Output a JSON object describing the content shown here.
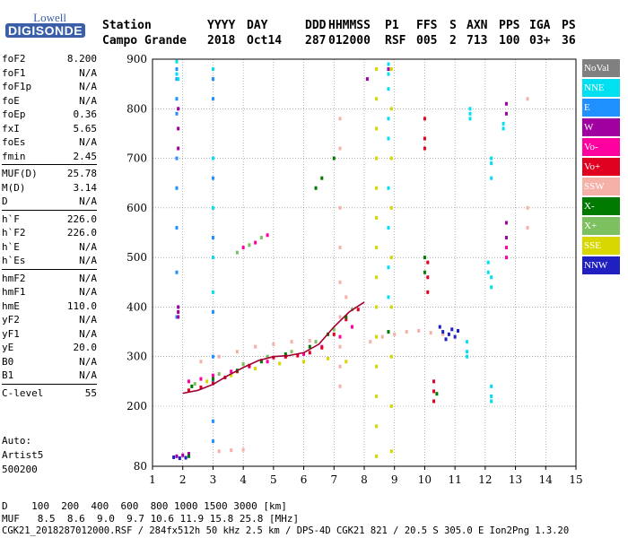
{
  "logo": {
    "top": "Lowell",
    "main": "DIGISONDE"
  },
  "header": {
    "labels": [
      "Station",
      "YYYY",
      "DAY",
      "DDD",
      "HHMMSS",
      "P1",
      "FFS",
      "S",
      "AXN",
      "PPS",
      "IGA",
      "PS"
    ],
    "values": [
      "Campo Grande",
      "2018",
      "Oct14",
      "287",
      "012000",
      "RSF",
      "005",
      "2",
      "713",
      "100",
      "03+",
      "36"
    ]
  },
  "parameter_groups": [
    [
      {
        "key": "foF2",
        "value": "8.200"
      },
      {
        "key": "foF1",
        "value": "N/A"
      },
      {
        "key": "foF1p",
        "value": "N/A"
      },
      {
        "key": "foE",
        "value": "N/A"
      },
      {
        "key": "foEp",
        "value": "0.36"
      },
      {
        "key": "fxI",
        "value": "5.65"
      },
      {
        "key": "foEs",
        "value": "N/A"
      },
      {
        "key": "fmin",
        "value": "2.45"
      }
    ],
    [
      {
        "key": "MUF(D)",
        "value": "25.78"
      },
      {
        "key": "M(D)",
        "value": "3.14"
      },
      {
        "key": "D",
        "value": "N/A"
      }
    ],
    [
      {
        "key": "h`F",
        "value": "226.0"
      },
      {
        "key": "h`F2",
        "value": "226.0"
      },
      {
        "key": "h`E",
        "value": "N/A"
      },
      {
        "key": "h`Es",
        "value": "N/A"
      }
    ],
    [
      {
        "key": "hmF2",
        "value": "N/A"
      },
      {
        "key": "hmF1",
        "value": "N/A"
      },
      {
        "key": "hmE",
        "value": "110.0"
      },
      {
        "key": "yF2",
        "value": "N/A"
      },
      {
        "key": "yF1",
        "value": "N/A"
      },
      {
        "key": "yE",
        "value": "20.0"
      },
      {
        "key": "B0",
        "value": "N/A"
      },
      {
        "key": "B1",
        "value": "N/A"
      }
    ],
    [
      {
        "key": "C-level",
        "value": "55"
      }
    ]
  ],
  "autoscaling": [
    "Auto:",
    "Artist5",
    "500200"
  ],
  "legend": [
    {
      "label": "NoVal",
      "color": "#808080"
    },
    {
      "label": "NNE",
      "color": "#00e0f0"
    },
    {
      "label": "E",
      "color": "#1e90ff"
    },
    {
      "label": "W",
      "color": "#a000a0"
    },
    {
      "label": "Vo-",
      "color": "#ff00a0"
    },
    {
      "label": "Vo+",
      "color": "#e00020"
    },
    {
      "label": "SSW",
      "color": "#f5b0a8"
    },
    {
      "label": "X-",
      "color": "#007a00"
    },
    {
      "label": "X+",
      "color": "#7cc060"
    },
    {
      "label": "SSE",
      "color": "#d8d800"
    },
    {
      "label": "NNW",
      "color": "#2020c0"
    }
  ],
  "footer": {
    "distance_row": "D    100  200  400  600  800 1000 1500 3000 [km]",
    "muf_row": "MUF   8.5  8.6  9.0  9.7 10.6 11.9 15.8 25.8 [MHz]",
    "info_row": "CGK21_2018287012000.RSF / 284fx512h 50 kHz 2.5 km / DPS-4D CGK21 821 / 20.5 S 305.0 E Ion2Png 1.3.20"
  },
  "chart_data": {
    "type": "scatter",
    "title": "",
    "xlabel": "",
    "ylabel": "",
    "xlim": [
      1,
      15
    ],
    "ylim": [
      80,
      900
    ],
    "xticks": [
      1,
      2,
      3,
      4,
      5,
      6,
      7,
      8,
      9,
      10,
      11,
      12,
      13,
      14,
      15
    ],
    "yticks": [
      80,
      200,
      300,
      400,
      500,
      600,
      700,
      800,
      900
    ],
    "grid": true,
    "legend_position": "right",
    "trace_line": {
      "name": "",
      "color": "#a00030",
      "x": [
        2.0,
        2.5,
        3.0,
        3.5,
        4.0,
        4.5,
        5.0,
        5.5,
        6.0,
        6.5,
        7.0,
        7.5,
        8.0
      ],
      "y": [
        226,
        232,
        244,
        262,
        278,
        292,
        300,
        302,
        308,
        325,
        360,
        390,
        410
      ]
    },
    "series": [
      {
        "name": "E",
        "color": "#1e90ff",
        "points": [
          [
            1.8,
            880
          ],
          [
            1.8,
            860
          ],
          [
            1.8,
            820
          ],
          [
            1.8,
            790
          ],
          [
            1.8,
            700
          ],
          [
            1.8,
            640
          ],
          [
            1.8,
            560
          ],
          [
            1.8,
            470
          ],
          [
            1.8,
            380
          ],
          [
            3.0,
            860
          ],
          [
            3.0,
            820
          ],
          [
            3.0,
            660
          ],
          [
            3.0,
            540
          ],
          [
            3.0,
            390
          ],
          [
            3.0,
            300
          ],
          [
            3.0,
            250
          ],
          [
            3.0,
            170
          ],
          [
            3.0,
            130
          ]
        ]
      },
      {
        "name": "W",
        "color": "#a000a0",
        "points": [
          [
            1.85,
            800
          ],
          [
            1.85,
            760
          ],
          [
            1.85,
            720
          ],
          [
            1.85,
            400
          ],
          [
            1.85,
            390
          ],
          [
            1.85,
            380
          ],
          [
            12.7,
            810
          ],
          [
            12.7,
            790
          ],
          [
            12.7,
            570
          ],
          [
            12.7,
            540
          ],
          [
            8.1,
            860
          ],
          [
            8.8,
            880
          ],
          [
            1.8,
            100
          ],
          [
            2.0,
            102
          ],
          [
            2.2,
            105
          ]
        ]
      },
      {
        "name": "Vo-",
        "color": "#ff00a0",
        "points": [
          [
            2.2,
            250
          ],
          [
            2.6,
            255
          ],
          [
            3.0,
            262
          ],
          [
            3.6,
            270
          ],
          [
            4.2,
            280
          ],
          [
            4.8,
            290
          ],
          [
            5.4,
            300
          ],
          [
            6.0,
            305
          ],
          [
            6.6,
            320
          ],
          [
            7.2,
            340
          ],
          [
            7.6,
            360
          ],
          [
            4.0,
            520
          ],
          [
            4.4,
            530
          ],
          [
            4.8,
            545
          ],
          [
            12.7,
            520
          ],
          [
            12.7,
            500
          ]
        ]
      },
      {
        "name": "Vo+",
        "color": "#e00020",
        "points": [
          [
            2.2,
            232
          ],
          [
            2.6,
            238
          ],
          [
            3.0,
            246
          ],
          [
            3.4,
            258
          ],
          [
            3.8,
            270
          ],
          [
            4.2,
            282
          ],
          [
            4.6,
            292
          ],
          [
            5.0,
            298
          ],
          [
            5.4,
            300
          ],
          [
            5.8,
            302
          ],
          [
            6.2,
            308
          ],
          [
            6.6,
            318
          ],
          [
            7.0,
            345
          ],
          [
            7.4,
            375
          ],
          [
            7.8,
            395
          ],
          [
            10.0,
            780
          ],
          [
            10.0,
            740
          ],
          [
            10.0,
            720
          ],
          [
            10.1,
            490
          ],
          [
            10.1,
            460
          ],
          [
            10.1,
            430
          ],
          [
            10.3,
            250
          ],
          [
            10.3,
            230
          ],
          [
            10.3,
            210
          ]
        ]
      },
      {
        "name": "SSW",
        "color": "#f5b0a8",
        "points": [
          [
            7.2,
            780
          ],
          [
            7.2,
            720
          ],
          [
            7.2,
            600
          ],
          [
            7.2,
            520
          ],
          [
            7.2,
            450
          ],
          [
            7.2,
            380
          ],
          [
            7.2,
            320
          ],
          [
            7.2,
            280
          ],
          [
            7.2,
            240
          ],
          [
            7.4,
            420
          ],
          [
            8.2,
            330
          ],
          [
            8.6,
            340
          ],
          [
            9.0,
            345
          ],
          [
            9.4,
            350
          ],
          [
            9.8,
            352
          ],
          [
            10.2,
            348
          ],
          [
            10.6,
            345
          ],
          [
            2.6,
            290
          ],
          [
            3.2,
            300
          ],
          [
            3.8,
            310
          ],
          [
            4.4,
            320
          ],
          [
            5.0,
            325
          ],
          [
            5.6,
            330
          ],
          [
            6.2,
            332
          ],
          [
            3.2,
            110
          ],
          [
            3.6,
            112
          ],
          [
            4.0,
            113
          ],
          [
            13.4,
            820
          ],
          [
            13.4,
            600
          ],
          [
            13.4,
            560
          ]
        ]
      },
      {
        "name": "X-",
        "color": "#007a00",
        "points": [
          [
            2.3,
            240
          ],
          [
            3.0,
            255
          ],
          [
            3.8,
            272
          ],
          [
            4.6,
            290
          ],
          [
            5.4,
            305
          ],
          [
            6.2,
            320
          ],
          [
            6.8,
            345
          ],
          [
            7.4,
            380
          ],
          [
            6.4,
            640
          ],
          [
            6.6,
            660
          ],
          [
            7.0,
            700
          ],
          [
            10.0,
            500
          ],
          [
            10.0,
            470
          ],
          [
            10.4,
            225
          ],
          [
            8.8,
            350
          ],
          [
            2.2,
            100
          ]
        ]
      },
      {
        "name": "X+",
        "color": "#7cc060",
        "points": [
          [
            2.4,
            245
          ],
          [
            3.2,
            265
          ],
          [
            4.0,
            285
          ],
          [
            4.8,
            300
          ],
          [
            5.6,
            310
          ],
          [
            6.4,
            330
          ],
          [
            7.0,
            355
          ],
          [
            7.6,
            395
          ],
          [
            3.8,
            510
          ],
          [
            4.2,
            525
          ],
          [
            4.6,
            540
          ]
        ]
      },
      {
        "name": "SSE",
        "color": "#d8d800",
        "points": [
          [
            2.8,
            250
          ],
          [
            3.6,
            262
          ],
          [
            4.4,
            276
          ],
          [
            5.2,
            286
          ],
          [
            6.0,
            290
          ],
          [
            6.8,
            296
          ],
          [
            7.4,
            290
          ],
          [
            8.4,
            880
          ],
          [
            8.4,
            820
          ],
          [
            8.4,
            760
          ],
          [
            8.4,
            700
          ],
          [
            8.4,
            640
          ],
          [
            8.4,
            580
          ],
          [
            8.4,
            520
          ],
          [
            8.4,
            460
          ],
          [
            8.4,
            400
          ],
          [
            8.4,
            340
          ],
          [
            8.4,
            280
          ],
          [
            8.4,
            220
          ],
          [
            8.4,
            160
          ],
          [
            8.4,
            100
          ],
          [
            8.9,
            880
          ],
          [
            8.9,
            800
          ],
          [
            8.9,
            700
          ],
          [
            8.9,
            600
          ],
          [
            8.9,
            500
          ],
          [
            8.9,
            400
          ],
          [
            8.9,
            300
          ],
          [
            8.9,
            200
          ],
          [
            8.9,
            110
          ]
        ]
      },
      {
        "name": "NNE",
        "color": "#00e0f0",
        "points": [
          [
            1.8,
            895
          ],
          [
            1.8,
            870
          ],
          [
            1.85,
            860
          ],
          [
            3.0,
            880
          ],
          [
            3.0,
            700
          ],
          [
            3.0,
            600
          ],
          [
            3.0,
            500
          ],
          [
            3.0,
            430
          ],
          [
            8.8,
            890
          ],
          [
            8.8,
            870
          ],
          [
            8.8,
            840
          ],
          [
            8.8,
            780
          ],
          [
            8.8,
            740
          ],
          [
            8.8,
            640
          ],
          [
            8.8,
            560
          ],
          [
            8.8,
            480
          ],
          [
            8.8,
            420
          ],
          [
            11.5,
            800
          ],
          [
            11.5,
            790
          ],
          [
            11.5,
            780
          ],
          [
            11.4,
            330
          ],
          [
            11.4,
            310
          ],
          [
            11.4,
            300
          ],
          [
            12.2,
            700
          ],
          [
            12.2,
            690
          ],
          [
            12.2,
            660
          ],
          [
            12.1,
            490
          ],
          [
            12.1,
            470
          ],
          [
            12.2,
            460
          ],
          [
            12.2,
            440
          ],
          [
            12.2,
            240
          ],
          [
            12.2,
            220
          ],
          [
            12.2,
            210
          ],
          [
            12.6,
            770
          ],
          [
            12.6,
            760
          ]
        ]
      },
      {
        "name": "NNW",
        "color": "#2020c0",
        "points": [
          [
            10.6,
            350
          ],
          [
            10.8,
            345
          ],
          [
            10.9,
            355
          ],
          [
            11.0,
            340
          ],
          [
            11.1,
            352
          ],
          [
            10.7,
            335
          ],
          [
            10.5,
            360
          ],
          [
            1.7,
            98
          ],
          [
            1.9,
            96
          ],
          [
            2.1,
            97
          ]
        ]
      }
    ]
  }
}
